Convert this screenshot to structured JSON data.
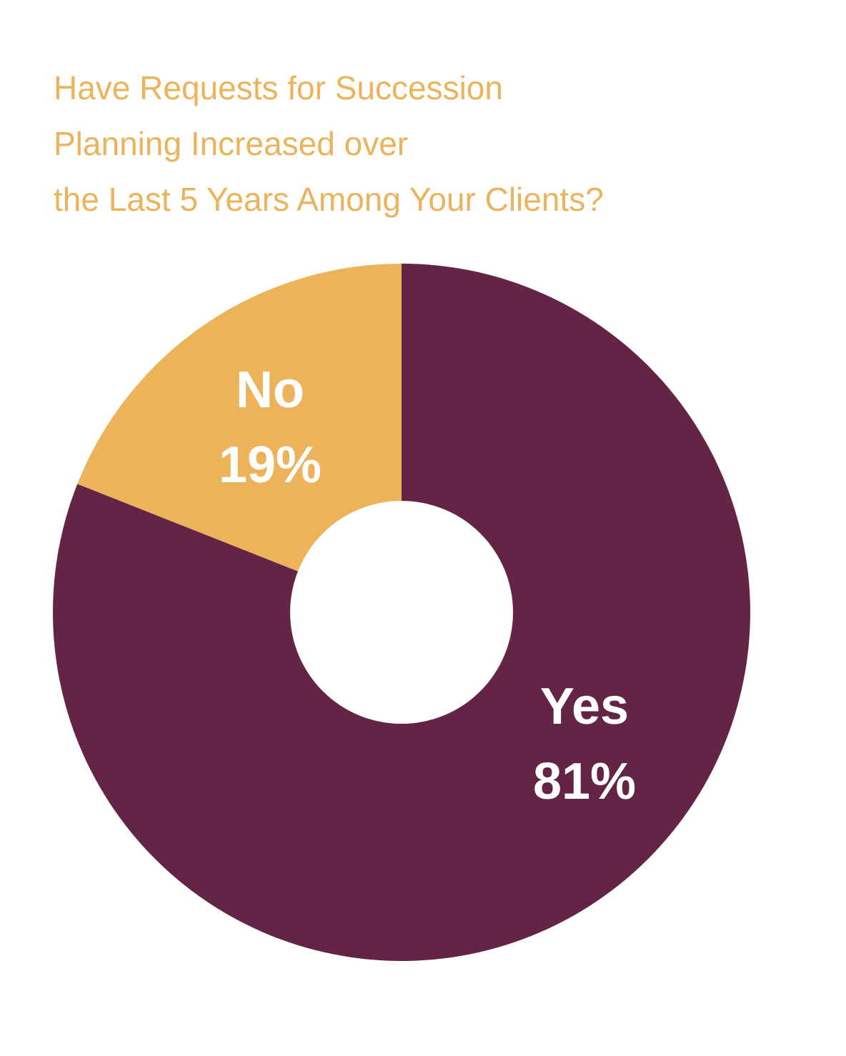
{
  "colors": {
    "title": "#ebb35b",
    "yes": "#632446",
    "no": "#ecb35b",
    "hole": "#ffffff"
  },
  "chart_data": {
    "type": "pie",
    "donut": true,
    "title_lines": [
      "Have Requests for Succession",
      "Planning Increased over",
      "the Last 5 Years Among Your Clients?"
    ],
    "slices": [
      {
        "label": "Yes",
        "value": 81,
        "value_label": "81%"
      },
      {
        "label": "No",
        "value": 19,
        "value_label": "19%"
      }
    ],
    "start_direction": "top",
    "direction": "clockwise"
  }
}
